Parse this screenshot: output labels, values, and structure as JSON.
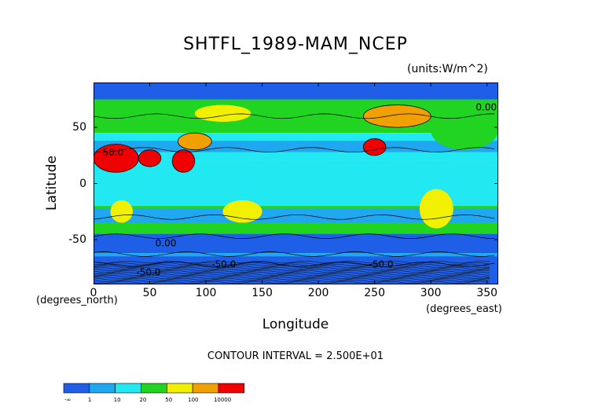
{
  "chart_data": {
    "type": "heatmap",
    "title": "SHTFL_1989-MAM_NCEP",
    "units": "(units:W/m^2)",
    "xlabel": "Longitude",
    "ylabel": "Latitude",
    "x_units": "(degrees_east)",
    "y_units": "(degrees_north)",
    "xlim": [
      0,
      360
    ],
    "ylim": [
      -90,
      90
    ],
    "x_ticks": [
      0,
      50,
      100,
      150,
      200,
      250,
      300,
      350
    ],
    "y_ticks": [
      50,
      0,
      -50
    ],
    "contour_interval": "CONTOUR INTERVAL = 2.500E+01",
    "contour_labels": [
      "0.00",
      "-50.0",
      "50.0"
    ],
    "colorbar": {
      "labels": [
        "-∞",
        "1",
        "10",
        "20",
        "50",
        "100",
        "10000"
      ],
      "colors": [
        "#1f5ee6",
        "#1fa8f0",
        "#22e8f2",
        "#22d422",
        "#f0f000",
        "#f0a000",
        "#f00000"
      ]
    },
    "regions": [
      {
        "name": "north-polar",
        "lon": [
          0,
          360
        ],
        "lat": [
          75,
          90
        ],
        "class": 0
      },
      {
        "name": "southern-ocean-band",
        "lon": [
          0,
          360
        ],
        "lat": [
          -60,
          -45
        ],
        "class": 0
      },
      {
        "name": "antarctica",
        "lon": [
          0,
          360
        ],
        "lat": [
          -90,
          -65
        ],
        "class": 0
      },
      {
        "name": "north-atlantic",
        "lon": [
          300,
          360
        ],
        "lat": [
          30,
          65
        ],
        "class": 3
      },
      {
        "name": "tropical-ocean",
        "lon": [
          0,
          360
        ],
        "lat": [
          -20,
          20
        ],
        "class": 2
      },
      {
        "name": "north-africa-sahara",
        "lon": [
          0,
          40
        ],
        "lat": [
          10,
          35
        ],
        "class": 6
      },
      {
        "name": "arabia",
        "lon": [
          40,
          60
        ],
        "lat": [
          15,
          30
        ],
        "class": 6
      },
      {
        "name": "india",
        "lon": [
          70,
          90
        ],
        "lat": [
          10,
          30
        ],
        "class": 6
      },
      {
        "name": "tibet",
        "lon": [
          75,
          105
        ],
        "lat": [
          30,
          45
        ],
        "class": 5
      },
      {
        "name": "siberia",
        "lon": [
          90,
          140
        ],
        "lat": [
          55,
          70
        ],
        "class": 4
      },
      {
        "name": "australia",
        "lon": [
          115,
          150
        ],
        "lat": [
          -35,
          -15
        ],
        "class": 4
      },
      {
        "name": "usa-southwest",
        "lon": [
          240,
          260
        ],
        "lat": [
          25,
          40
        ],
        "class": 6
      },
      {
        "name": "south-america",
        "lon": [
          290,
          320
        ],
        "lat": [
          -40,
          -5
        ],
        "class": 4
      },
      {
        "name": "south-africa",
        "lon": [
          15,
          35
        ],
        "lat": [
          -35,
          -15
        ],
        "class": 4
      },
      {
        "name": "canada",
        "lon": [
          240,
          300
        ],
        "lat": [
          50,
          70
        ],
        "class": 5
      }
    ]
  }
}
